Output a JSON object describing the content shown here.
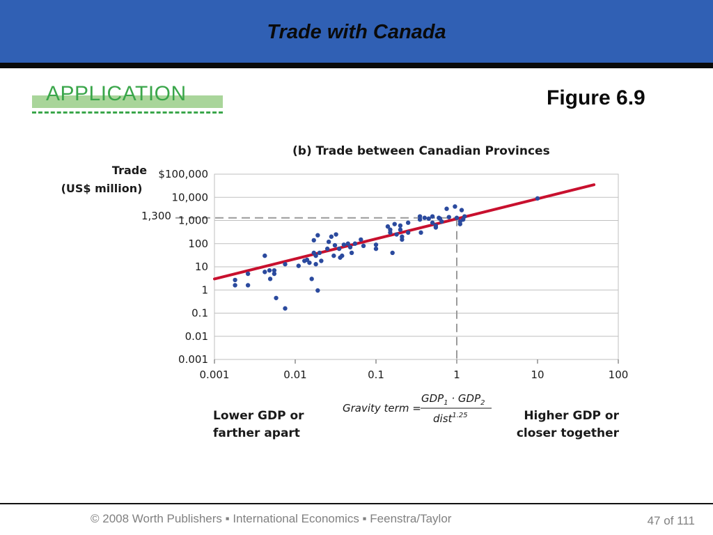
{
  "slide": {
    "title": "Trade with Canada",
    "section_label": "APPLICATION",
    "figure_label": "Figure 6.9",
    "footer": "© 2008 Worth Publishers ▪ International Economics ▪ Feenstra/Taylor",
    "page_number": "47",
    "page_of": "of",
    "page_total": "111"
  },
  "colors": {
    "banner": "#3060b4",
    "application": "#3aa64a",
    "points": "#2b4a9e",
    "fit_line": "#c8102e"
  },
  "chart_data": {
    "type": "scatter",
    "title": "(b) Trade between Canadian Provinces",
    "ylabel_lines": [
      "Trade",
      "(US$ million)"
    ],
    "xlabel_left": [
      "Lower GDP or",
      "farther apart"
    ],
    "xlabel_right": [
      "Higher GDP or",
      "closer together"
    ],
    "gravity_term": {
      "label": "Gravity term =",
      "numerator": [
        "GDP",
        "1",
        " · GDP",
        "2"
      ],
      "denominator": [
        "dist",
        "1.25"
      ]
    },
    "xscale": "log",
    "yscale": "log",
    "xlim": [
      0.001,
      100
    ],
    "ylim": [
      0.001,
      100000
    ],
    "x_ticks": [
      {
        "v": 0.001,
        "label": "0.001"
      },
      {
        "v": 0.01,
        "label": "0.01"
      },
      {
        "v": 0.1,
        "label": "0.1"
      },
      {
        "v": 1,
        "label": "1"
      },
      {
        "v": 10,
        "label": "10"
      },
      {
        "v": 100,
        "label": "100"
      }
    ],
    "y_ticks": [
      {
        "v": 0.001,
        "label": "0.001"
      },
      {
        "v": 0.01,
        "label": "0.01"
      },
      {
        "v": 0.1,
        "label": "0.1"
      },
      {
        "v": 1,
        "label": "1"
      },
      {
        "v": 10,
        "label": "10"
      },
      {
        "v": 100,
        "label": "100"
      },
      {
        "v": 1000,
        "label": "1,000"
      },
      {
        "v": 10000,
        "label": "10,000"
      },
      {
        "v": 100000,
        "label": "$100,000"
      }
    ],
    "grid": true,
    "annotation": {
      "x": 1,
      "y": 1300,
      "label": "1,300"
    },
    "fit_line": {
      "x": [
        0.001,
        50
      ],
      "y": [
        3,
        35000
      ]
    },
    "points": [
      [
        0.0018,
        2.7
      ],
      [
        0.0018,
        1.6
      ],
      [
        0.0026,
        5
      ],
      [
        0.0026,
        1.6
      ],
      [
        0.0042,
        30
      ],
      [
        0.0042,
        6
      ],
      [
        0.0048,
        7
      ],
      [
        0.0049,
        3
      ],
      [
        0.0055,
        7
      ],
      [
        0.0055,
        5
      ],
      [
        0.0058,
        0.45
      ],
      [
        0.0075,
        0.16
      ],
      [
        0.0075,
        13
      ],
      [
        0.011,
        11
      ],
      [
        0.013,
        18
      ],
      [
        0.014,
        20
      ],
      [
        0.015,
        15
      ],
      [
        0.016,
        3
      ],
      [
        0.017,
        140
      ],
      [
        0.017,
        40
      ],
      [
        0.018,
        13
      ],
      [
        0.018,
        30
      ],
      [
        0.019,
        230
      ],
      [
        0.019,
        0.95
      ],
      [
        0.02,
        40
      ],
      [
        0.021,
        18
      ],
      [
        0.025,
        60
      ],
      [
        0.026,
        120
      ],
      [
        0.028,
        200
      ],
      [
        0.03,
        30
      ],
      [
        0.031,
        85
      ],
      [
        0.032,
        250
      ],
      [
        0.035,
        60
      ],
      [
        0.036,
        25
      ],
      [
        0.038,
        30
      ],
      [
        0.04,
        90
      ],
      [
        0.045,
        100
      ],
      [
        0.048,
        70
      ],
      [
        0.05,
        40
      ],
      [
        0.055,
        100
      ],
      [
        0.065,
        150
      ],
      [
        0.07,
        80
      ],
      [
        0.1,
        90
      ],
      [
        0.1,
        60
      ],
      [
        0.14,
        550
      ],
      [
        0.15,
        400
      ],
      [
        0.15,
        300
      ],
      [
        0.16,
        40
      ],
      [
        0.17,
        700
      ],
      [
        0.18,
        250
      ],
      [
        0.2,
        600
      ],
      [
        0.2,
        400
      ],
      [
        0.21,
        200
      ],
      [
        0.21,
        150
      ],
      [
        0.25,
        800
      ],
      [
        0.25,
        300
      ],
      [
        0.35,
        1100
      ],
      [
        0.35,
        1500
      ],
      [
        0.36,
        300
      ],
      [
        0.4,
        1300
      ],
      [
        0.45,
        1200
      ],
      [
        0.5,
        800
      ],
      [
        0.5,
        1500
      ],
      [
        0.55,
        600
      ],
      [
        0.55,
        500
      ],
      [
        0.6,
        1300
      ],
      [
        0.62,
        1200
      ],
      [
        0.65,
        900
      ],
      [
        0.75,
        3200
      ],
      [
        0.8,
        1400
      ],
      [
        0.95,
        4000
      ],
      [
        1.0,
        1300
      ],
      [
        1.1,
        900
      ],
      [
        1.1,
        700
      ],
      [
        1.15,
        2800
      ],
      [
        1.2,
        1100
      ],
      [
        1.25,
        1500
      ],
      [
        10,
        9000
      ]
    ]
  }
}
